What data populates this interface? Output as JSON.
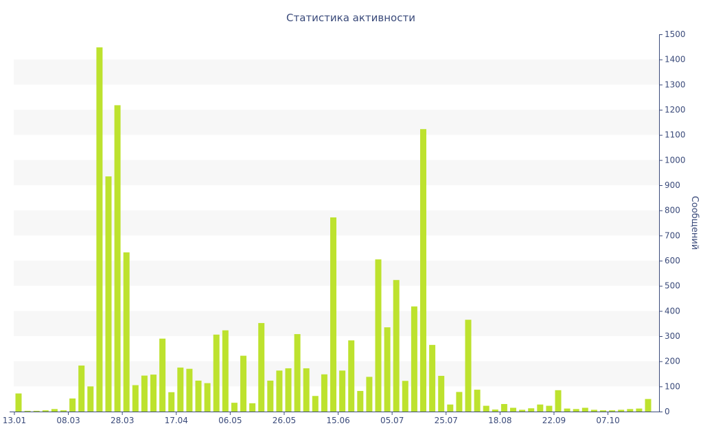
{
  "chart_data": {
    "type": "bar",
    "title": "Статистика активности",
    "xlabel": "",
    "ylabel": "Сообщений",
    "y_axis_side": "right",
    "ylim": [
      0,
      1500
    ],
    "y_ticks": [
      0,
      100,
      200,
      300,
      400,
      500,
      600,
      700,
      800,
      900,
      1000,
      1100,
      1200,
      1300,
      1400,
      1500
    ],
    "x_tick_labels": [
      {
        "label": "13.01",
        "index": 0
      },
      {
        "label": "08.03",
        "index": 6
      },
      {
        "label": "28.03",
        "index": 12
      },
      {
        "label": "17.04",
        "index": 18
      },
      {
        "label": "06.05",
        "index": 24
      },
      {
        "label": "26.05",
        "index": 30
      },
      {
        "label": "15.06",
        "index": 36
      },
      {
        "label": "05.07",
        "index": 42
      },
      {
        "label": "25.07",
        "index": 48
      },
      {
        "label": "18.08",
        "index": 54
      },
      {
        "label": "22.09",
        "index": 60
      },
      {
        "label": "07.10",
        "index": 66
      }
    ],
    "grid": "alternating horizontal bands",
    "colors": {
      "bar": "#bde22e",
      "band": "#f7f7f7",
      "axis": "#3a4a7a",
      "text": "#3a4a7a"
    },
    "values": [
      72,
      3,
      3,
      5,
      10,
      5,
      52,
      183,
      100,
      1448,
      935,
      1218,
      633,
      105,
      143,
      147,
      290,
      77,
      175,
      170,
      123,
      113,
      306,
      323,
      35,
      222,
      33,
      352,
      123,
      163,
      172,
      308,
      172,
      62,
      148,
      772,
      163,
      283,
      82,
      138,
      605,
      335,
      523,
      122,
      418,
      1123,
      265,
      142,
      28,
      78,
      365,
      87,
      23,
      8,
      30,
      15,
      7,
      13,
      28,
      23,
      85,
      12,
      10,
      15,
      7,
      5,
      5,
      7,
      10,
      12,
      50
    ]
  }
}
